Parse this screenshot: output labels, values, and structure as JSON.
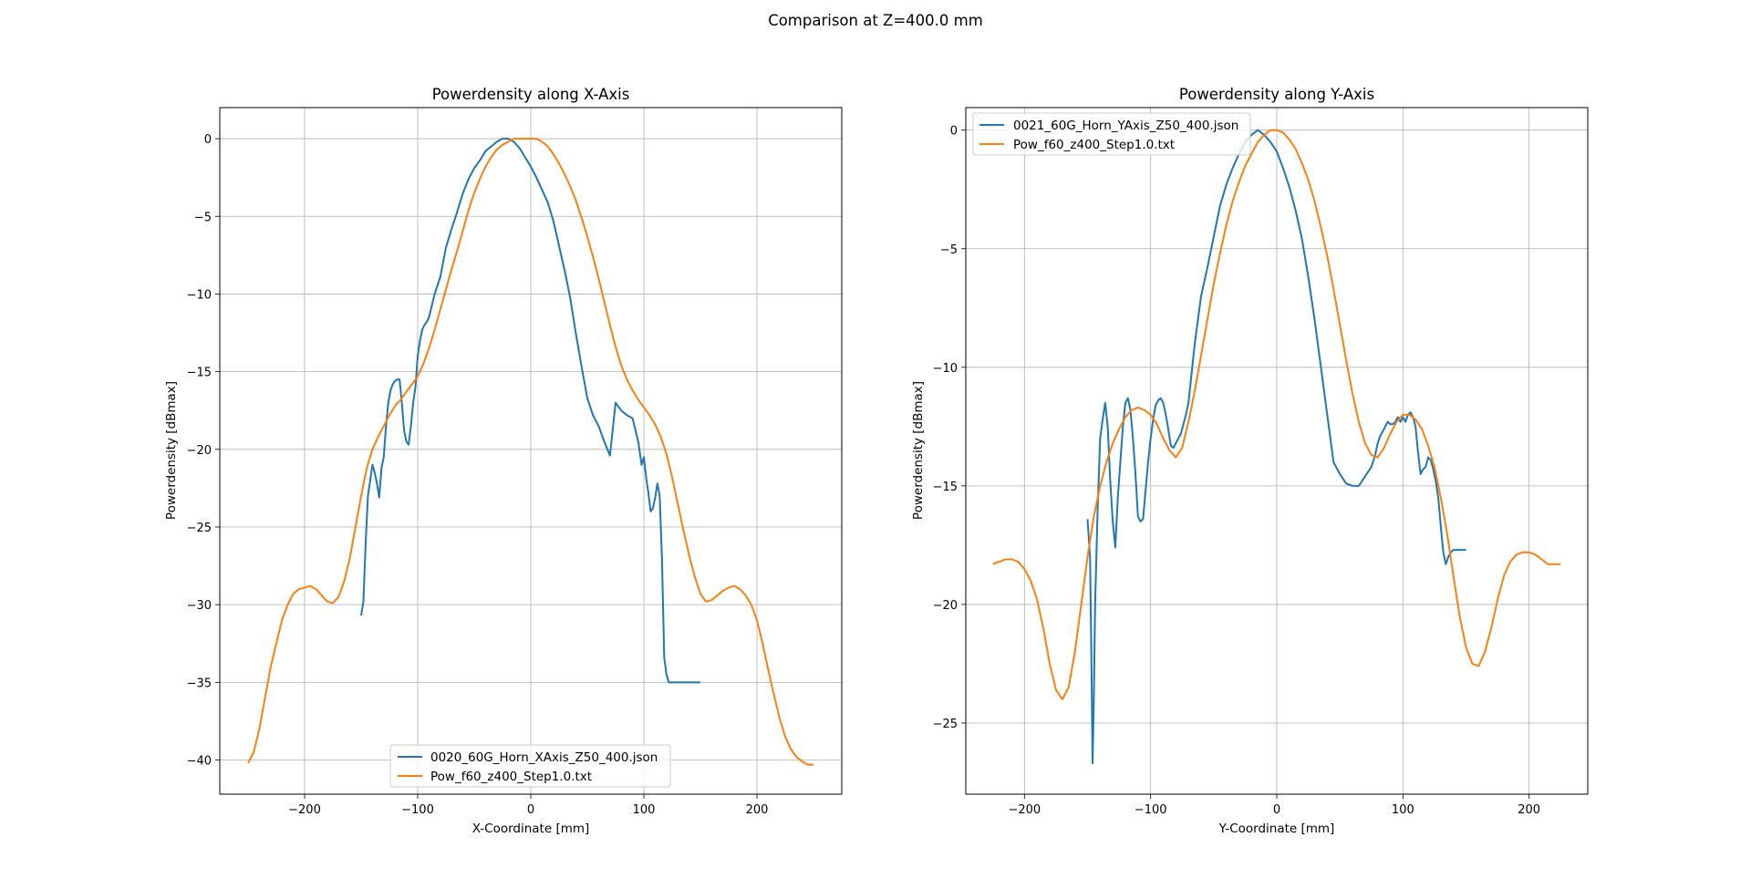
{
  "figure": {
    "title": "Comparison at Z=400.0 mm"
  },
  "chart_data": [
    {
      "type": "line",
      "title": "Powerdensity along X-Axis",
      "xlabel": "X-Coordinate [mm]",
      "ylabel": "Powerdensity [dBmax]",
      "xlim": [
        -275,
        275
      ],
      "ylim": [
        -42.2,
        2
      ],
      "xticks": [
        -200,
        -100,
        0,
        100,
        200
      ],
      "yticks": [
        0,
        -5,
        -10,
        -15,
        -20,
        -25,
        -30,
        -35,
        -40
      ],
      "grid": true,
      "legend_position": "lower center",
      "series": [
        {
          "name": "0020_60G_Horn_XAxis_Z50_400.json",
          "color": "#1f77b4",
          "x": [
            -150,
            -148,
            -146,
            -144,
            -142,
            -140,
            -138,
            -136,
            -134,
            -132,
            -130,
            -128,
            -126,
            -124,
            -122,
            -120,
            -118,
            -116,
            -114,
            -112,
            -110,
            -108,
            -106,
            -104,
            -102,
            -100,
            -98,
            -96,
            -94,
            -92,
            -90,
            -85,
            -80,
            -75,
            -70,
            -65,
            -60,
            -55,
            -50,
            -45,
            -40,
            -35,
            -30,
            -25,
            -20,
            -15,
            -10,
            -5,
            0,
            5,
            10,
            15,
            20,
            25,
            30,
            35,
            40,
            45,
            50,
            55,
            60,
            65,
            70,
            75,
            80,
            85,
            90,
            95,
            98,
            100,
            102,
            104,
            106,
            108,
            110,
            112,
            114,
            116,
            118,
            120,
            122,
            124,
            126,
            128,
            130,
            132,
            134,
            136,
            138,
            140,
            142,
            144,
            146,
            148,
            150
          ],
          "y": [
            -30.7,
            -29.8,
            -26,
            -23,
            -22,
            -21,
            -21.5,
            -22.2,
            -23.1,
            -21.2,
            -20.5,
            -18.5,
            -17,
            -16.2,
            -15.8,
            -15.6,
            -15.5,
            -15.5,
            -17,
            -18.8,
            -19.5,
            -19.7,
            -18.5,
            -17,
            -16,
            -14,
            -13,
            -12.3,
            -12,
            -11.8,
            -11.5,
            -10,
            -8.9,
            -7,
            -5.8,
            -4.7,
            -3.5,
            -2.6,
            -1.9,
            -1.4,
            -0.8,
            -0.5,
            -0.2,
            0,
            0,
            -0.2,
            -0.6,
            -1.2,
            -1.8,
            -2.5,
            -3.3,
            -4.1,
            -5.3,
            -6.9,
            -8.5,
            -10.3,
            -12.6,
            -14.7,
            -16.7,
            -17.8,
            -18.5,
            -19.5,
            -20.4,
            -17,
            -17.5,
            -17.8,
            -18,
            -19.5,
            -21,
            -20.5,
            -21.8,
            -22.8,
            -24,
            -23.8,
            -23.1,
            -22.2,
            -23,
            -27,
            -33.4,
            -34.5,
            -35,
            -35,
            -35,
            -35,
            -35,
            -35,
            -35,
            -35,
            -35,
            -35,
            -35,
            -35,
            -35,
            -35,
            -35
          ]
        },
        {
          "name": "Pow_f60_z400_Step1.0.txt",
          "color": "#ff7f0e",
          "x": [
            -250,
            -245,
            -240,
            -235,
            -230,
            -225,
            -220,
            -215,
            -210,
            -205,
            -200,
            -195,
            -190,
            -185,
            -180,
            -175,
            -170,
            -165,
            -160,
            -155,
            -150,
            -145,
            -140,
            -135,
            -130,
            -125,
            -120,
            -115,
            -110,
            -105,
            -100,
            -95,
            -90,
            -85,
            -80,
            -75,
            -70,
            -65,
            -60,
            -55,
            -50,
            -45,
            -40,
            -35,
            -30,
            -25,
            -20,
            -15,
            -10,
            -5,
            0,
            5,
            10,
            15,
            20,
            25,
            30,
            35,
            40,
            45,
            50,
            55,
            60,
            65,
            70,
            75,
            80,
            85,
            90,
            95,
            100,
            105,
            110,
            115,
            120,
            125,
            130,
            135,
            140,
            145,
            150,
            155,
            160,
            165,
            170,
            175,
            180,
            185,
            190,
            195,
            200,
            205,
            210,
            215,
            220,
            225,
            230,
            235,
            240,
            245,
            250
          ],
          "y": [
            -40.2,
            -39.5,
            -38,
            -36,
            -34,
            -32.5,
            -31,
            -30,
            -29.3,
            -29,
            -28.9,
            -28.8,
            -29,
            -29.4,
            -29.8,
            -29.9,
            -29.5,
            -28.5,
            -27,
            -25,
            -23,
            -21.2,
            -20,
            -19.2,
            -18.5,
            -17.8,
            -17.2,
            -16.8,
            -16.3,
            -15.8,
            -15.3,
            -14.5,
            -13.5,
            -12.3,
            -11,
            -9.7,
            -8.4,
            -7.2,
            -5.9,
            -4.6,
            -3.5,
            -2.6,
            -1.8,
            -1.2,
            -0.7,
            -0.4,
            -0.2,
            0,
            0,
            0,
            0,
            0,
            -0.2,
            -0.5,
            -1,
            -1.6,
            -2.3,
            -3.1,
            -4,
            -5.1,
            -6.3,
            -7.6,
            -9,
            -10.5,
            -12,
            -13.4,
            -14.6,
            -15.5,
            -16.2,
            -16.8,
            -17.3,
            -17.8,
            -18.4,
            -19.2,
            -20.3,
            -21.8,
            -23.5,
            -25.2,
            -26.8,
            -28.2,
            -29.3,
            -29.8,
            -29.7,
            -29.4,
            -29.1,
            -28.9,
            -28.8,
            -29,
            -29.4,
            -30,
            -31,
            -32.5,
            -34.2,
            -35.8,
            -37.3,
            -38.5,
            -39.3,
            -39.8,
            -40.1,
            -40.3,
            -40.3
          ]
        }
      ]
    },
    {
      "type": "line",
      "title": "Powerdensity along Y-Axis",
      "xlabel": "Y-Coordinate [mm]",
      "ylabel": "Powerdensity [dBmax]",
      "xlim": [
        -246.5,
        246.5
      ],
      "ylim": [
        -28,
        0.95
      ],
      "xticks": [
        -200,
        -100,
        0,
        100,
        200
      ],
      "yticks": [
        0,
        -5,
        -10,
        -15,
        -20,
        -25
      ],
      "grid": true,
      "legend_position": "upper left",
      "series": [
        {
          "name": "0021_60G_Horn_YAxis_Z50_400.json",
          "color": "#1f77b4",
          "x": [
            -150,
            -148,
            -147,
            -146,
            -145,
            -144,
            -142,
            -140,
            -138,
            -136,
            -134,
            -132,
            -130,
            -128,
            -126,
            -124,
            -122,
            -120,
            -118,
            -116,
            -114,
            -112,
            -110,
            -108,
            -106,
            -104,
            -102,
            -100,
            -98,
            -96,
            -94,
            -92,
            -90,
            -88,
            -86,
            -84,
            -82,
            -80,
            -78,
            -76,
            -74,
            -72,
            -70,
            -65,
            -60,
            -55,
            -50,
            -45,
            -40,
            -35,
            -30,
            -25,
            -20,
            -15,
            -10,
            -5,
            0,
            5,
            10,
            15,
            20,
            25,
            30,
            35,
            40,
            45,
            50,
            55,
            60,
            65,
            70,
            75,
            78,
            80,
            82,
            84,
            86,
            88,
            90,
            92,
            94,
            96,
            98,
            100,
            102,
            104,
            106,
            108,
            110,
            112,
            114,
            116,
            118,
            120,
            122,
            124,
            126,
            128,
            130,
            132,
            134,
            136,
            138,
            140,
            142,
            144,
            146,
            148,
            150
          ],
          "y": [
            -16.4,
            -18,
            -22,
            -26.7,
            -24,
            -20,
            -16,
            -13,
            -12.2,
            -11.5,
            -12.5,
            -14.8,
            -16.5,
            -17.6,
            -15.5,
            -14,
            -12.5,
            -11.5,
            -11.3,
            -11.8,
            -13,
            -14.5,
            -16.3,
            -16.5,
            -16.4,
            -15.2,
            -14,
            -13,
            -12.2,
            -11.6,
            -11.4,
            -11.3,
            -11.5,
            -12,
            -12.6,
            -13.3,
            -13.4,
            -13.2,
            -13,
            -12.8,
            -12.4,
            -12,
            -11.5,
            -9,
            -7,
            -5.8,
            -4.5,
            -3.2,
            -2.3,
            -1.6,
            -1,
            -0.5,
            -0.2,
            0,
            -0.2,
            -0.5,
            -0.9,
            -1.6,
            -2.4,
            -3.4,
            -4.6,
            -6.2,
            -8,
            -10,
            -12,
            -14,
            -14.5,
            -14.9,
            -15,
            -15,
            -14.6,
            -14.2,
            -13.7,
            -13.2,
            -12.9,
            -12.7,
            -12.5,
            -12.3,
            -12.4,
            -12.4,
            -12.3,
            -12.1,
            -12.3,
            -12.1,
            -12.3,
            -12,
            -11.9,
            -12.1,
            -12.5,
            -13.6,
            -14.5,
            -14.3,
            -14.2,
            -13.8,
            -13.9,
            -14.3,
            -14.8,
            -15.5,
            -16.7,
            -17.8,
            -18.3,
            -18,
            -17.8,
            -17.7,
            -17.7,
            -17.7,
            -17.7,
            -17.7,
            -17.7
          ]
        },
        {
          "name": "Pow_f60_z400_Step1.0.txt",
          "color": "#ff7f0e",
          "x": [
            -225,
            -220,
            -215,
            -210,
            -205,
            -200,
            -195,
            -190,
            -185,
            -180,
            -175,
            -170,
            -165,
            -160,
            -155,
            -150,
            -145,
            -140,
            -135,
            -130,
            -125,
            -120,
            -115,
            -110,
            -105,
            -100,
            -95,
            -90,
            -85,
            -80,
            -75,
            -70,
            -65,
            -60,
            -55,
            -50,
            -45,
            -40,
            -35,
            -30,
            -25,
            -20,
            -15,
            -10,
            -5,
            0,
            5,
            10,
            15,
            20,
            25,
            30,
            35,
            40,
            45,
            50,
            55,
            60,
            65,
            70,
            75,
            80,
            85,
            90,
            95,
            100,
            105,
            110,
            115,
            120,
            125,
            130,
            135,
            140,
            145,
            150,
            155,
            160,
            165,
            170,
            175,
            180,
            185,
            190,
            195,
            200,
            205,
            210,
            215,
            220,
            225
          ],
          "y": [
            -18.3,
            -18.2,
            -18.1,
            -18.1,
            -18.2,
            -18.5,
            -19,
            -19.8,
            -21,
            -22.5,
            -23.6,
            -24,
            -23.5,
            -22,
            -20,
            -18,
            -16.3,
            -15,
            -14,
            -13.2,
            -12.6,
            -12.1,
            -11.8,
            -11.7,
            -11.8,
            -12,
            -12.4,
            -13,
            -13.5,
            -13.8,
            -13.4,
            -12.3,
            -11,
            -9.5,
            -8,
            -6.5,
            -5.2,
            -4,
            -3,
            -2.2,
            -1.5,
            -1,
            -0.5,
            -0.2,
            0,
            0,
            -0.1,
            -0.4,
            -0.8,
            -1.4,
            -2.1,
            -3,
            -4.1,
            -5.3,
            -6.7,
            -8.2,
            -9.7,
            -11.1,
            -12.3,
            -13.2,
            -13.7,
            -13.8,
            -13.4,
            -12.8,
            -12.3,
            -12,
            -12,
            -12.2,
            -12.6,
            -13.3,
            -14.2,
            -15.5,
            -17,
            -18.8,
            -20.5,
            -21.8,
            -22.5,
            -22.6,
            -22,
            -21,
            -19.8,
            -18.8,
            -18.2,
            -17.9,
            -17.8,
            -17.8,
            -17.9,
            -18.1,
            -18.3,
            -18.3,
            -18.3
          ]
        }
      ]
    }
  ]
}
